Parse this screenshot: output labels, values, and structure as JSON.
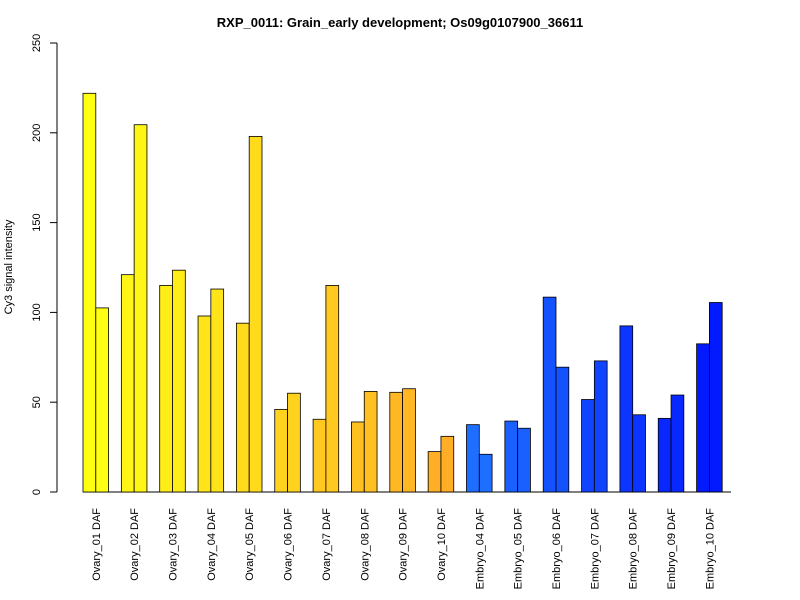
{
  "chart_data": {
    "type": "bar",
    "title": "RXP_0011: Grain_early development; Os09g0107900_36611",
    "xlabel": "",
    "ylabel": "Cy3 signal intensity",
    "ylim": [
      0,
      250
    ],
    "yticks": [
      0,
      50,
      100,
      150,
      200,
      250
    ],
    "grid": false,
    "legend": "none",
    "categories": [
      "Ovary_01 DAF",
      "Ovary_02 DAF",
      "Ovary_03 DAF",
      "Ovary_04 DAF",
      "Ovary_05 DAF",
      "Ovary_06 DAF",
      "Ovary_07 DAF",
      "Ovary_08 DAF",
      "Ovary_09 DAF",
      "Ovary_10 DAF",
      "Embryo_04 DAF",
      "Embryo_05 DAF",
      "Embryo_06 DAF",
      "Embryo_07 DAF",
      "Embryo_08 DAF",
      "Embryo_09 DAF",
      "Embryo_10 DAF"
    ],
    "colors": [
      "#FFFF13",
      "#FFF615",
      "#FFED17",
      "#FFE419",
      "#FFDB1C",
      "#FFD21E",
      "#FFC920",
      "#FFC022",
      "#FFB724",
      "#FFAE26",
      "#1E6EFF",
      "#1A60FF",
      "#1552FF",
      "#1144FF",
      "#0C36FF",
      "#0828FF",
      "#031AFF"
    ],
    "series": [
      {
        "values": [
          222,
          121,
          115,
          98,
          94,
          46,
          40.5,
          39,
          55.5,
          22.5,
          37.5,
          39.5,
          108.5,
          51.5,
          92.5,
          41,
          82.5
        ]
      },
      {
        "values": [
          102.5,
          204.5,
          123.5,
          113,
          198,
          55,
          115,
          56,
          57.5,
          31,
          21,
          35.5,
          69.5,
          73,
          43,
          54,
          105.5
        ]
      }
    ]
  }
}
